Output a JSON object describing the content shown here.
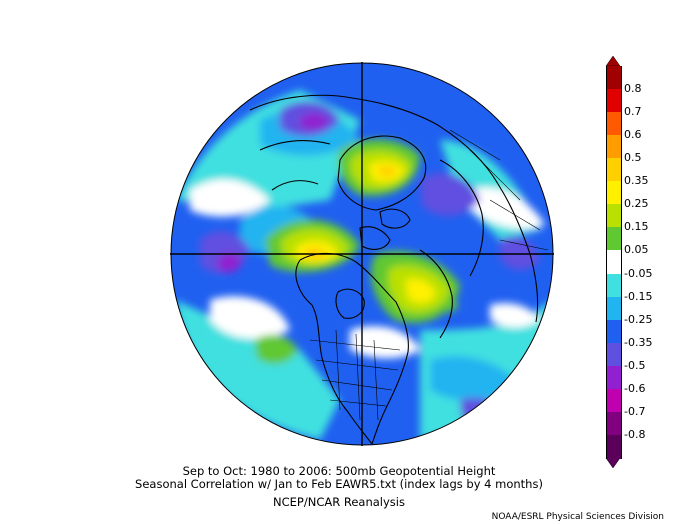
{
  "captions": {
    "line1": "Sep to Oct: 1980 to 2006: 500mb Geopotential Height",
    "line2": "Seasonal Correlation w/ Jan to Feb EAWR5.txt (index lags by 4 months)",
    "line3": "NCEP/NCAR Reanalysis",
    "credit": "NOAA/ESRL Physical Sciences Division"
  },
  "colorbar": {
    "labels": [
      "0.8",
      "0.7",
      "0.6",
      "0.5",
      "0.35",
      "0.25",
      "0.15",
      "0.05",
      "-0.05",
      "-0.15",
      "-0.25",
      "-0.35",
      "-0.5",
      "-0.6",
      "-0.7",
      "-0.8"
    ],
    "colors": [
      "#a00000",
      "#e00000",
      "#ff5a00",
      "#ff9c00",
      "#ffd000",
      "#fff000",
      "#b9e000",
      "#60c830",
      "#ffffff",
      "#40e0e0",
      "#20b4f0",
      "#2060f0",
      "#6050e0",
      "#9020d0",
      "#c000b0",
      "#800080",
      "#5a005a"
    ]
  },
  "map_colors": {
    "ocean_base": "#2060f0",
    "negative_light": "#40e0e0",
    "neutral": "#ffffff",
    "negative_mid": "#20b4f0",
    "negative_strong": "#6050e0",
    "negative_extreme": "#9020d0",
    "positive_light": "#60c830",
    "positive_mid": "#b9e000",
    "positive_strong": "#fff000",
    "positive_peak": "#ffd000"
  }
}
